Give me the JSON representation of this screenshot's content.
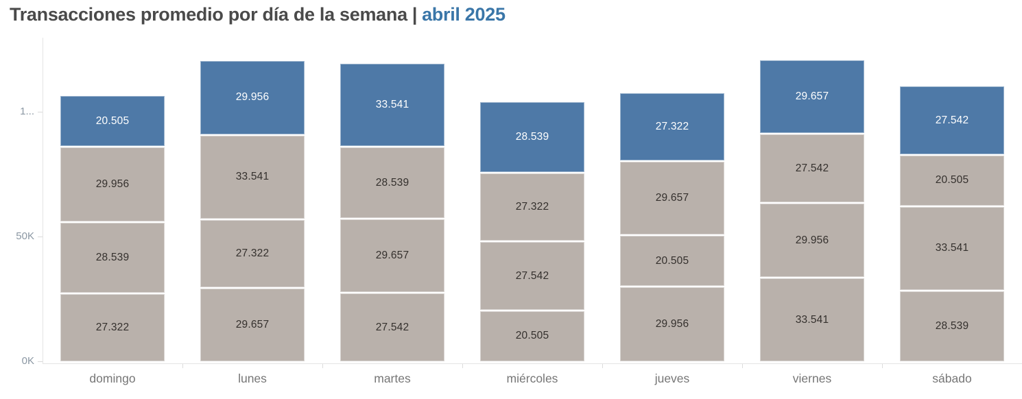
{
  "title": {
    "main": "Transacciones promedio por día de la semana",
    "separator": "|",
    "period": "abril 2025"
  },
  "colors": {
    "highlight_blue": "#4e79a7",
    "base_gray": "#b9b1ab",
    "title_main": "#4a4a4a",
    "title_period": "#3a76a8",
    "axis_text": "#8b97a3",
    "day_text": "#767676"
  },
  "chart_data": {
    "type": "bar",
    "stacked": true,
    "title": "Transacciones promedio por día de la semana | abril 2025",
    "xlabel": "",
    "ylabel": "",
    "ylim": [
      0,
      130000
    ],
    "grid": false,
    "legend": "none",
    "y_axis_ticks": [
      {
        "label": "0K",
        "value": 0
      },
      {
        "label": "50K",
        "value": 50000
      },
      {
        "label": "1...",
        "value": 100000
      }
    ],
    "categories": [
      "domingo",
      "lunes",
      "martes",
      "miércoles",
      "jueves",
      "viernes",
      "sábado"
    ],
    "segment_order_note": "segments listed top-to-bottom as displayed; first segment of each bar is the blue highlighted one",
    "bars": [
      {
        "day": "domingo",
        "segments": [
          {
            "label": "20.505",
            "value": 20505,
            "highlight": true
          },
          {
            "label": "29.956",
            "value": 29956,
            "highlight": false
          },
          {
            "label": "28.539",
            "value": 28539,
            "highlight": false
          },
          {
            "label": "27.322",
            "value": 27322,
            "highlight": false
          }
        ]
      },
      {
        "day": "lunes",
        "segments": [
          {
            "label": "29.956",
            "value": 29956,
            "highlight": true
          },
          {
            "label": "33.541",
            "value": 33541,
            "highlight": false
          },
          {
            "label": "27.322",
            "value": 27322,
            "highlight": false
          },
          {
            "label": "29.657",
            "value": 29657,
            "highlight": false
          }
        ]
      },
      {
        "day": "martes",
        "segments": [
          {
            "label": "33.541",
            "value": 33541,
            "highlight": true
          },
          {
            "label": "28.539",
            "value": 28539,
            "highlight": false
          },
          {
            "label": "29.657",
            "value": 29657,
            "highlight": false
          },
          {
            "label": "27.542",
            "value": 27542,
            "highlight": false
          }
        ]
      },
      {
        "day": "miércoles",
        "segments": [
          {
            "label": "28.539",
            "value": 28539,
            "highlight": true
          },
          {
            "label": "27.322",
            "value": 27322,
            "highlight": false
          },
          {
            "label": "27.542",
            "value": 27542,
            "highlight": false
          },
          {
            "label": "20.505",
            "value": 20505,
            "highlight": false
          }
        ]
      },
      {
        "day": "jueves",
        "segments": [
          {
            "label": "27.322",
            "value": 27322,
            "highlight": true
          },
          {
            "label": "29.657",
            "value": 29657,
            "highlight": false
          },
          {
            "label": "20.505",
            "value": 20505,
            "highlight": false
          },
          {
            "label": "29.956",
            "value": 29956,
            "highlight": false
          }
        ]
      },
      {
        "day": "viernes",
        "segments": [
          {
            "label": "29.657",
            "value": 29657,
            "highlight": true
          },
          {
            "label": "27.542",
            "value": 27542,
            "highlight": false
          },
          {
            "label": "29.956",
            "value": 29956,
            "highlight": false
          },
          {
            "label": "33.541",
            "value": 33541,
            "highlight": false
          }
        ]
      },
      {
        "day": "sábado",
        "segments": [
          {
            "label": "27.542",
            "value": 27542,
            "highlight": true
          },
          {
            "label": "20.505",
            "value": 20505,
            "highlight": false
          },
          {
            "label": "33.541",
            "value": 33541,
            "highlight": false
          },
          {
            "label": "28.539",
            "value": 28539,
            "highlight": false
          }
        ]
      }
    ]
  }
}
